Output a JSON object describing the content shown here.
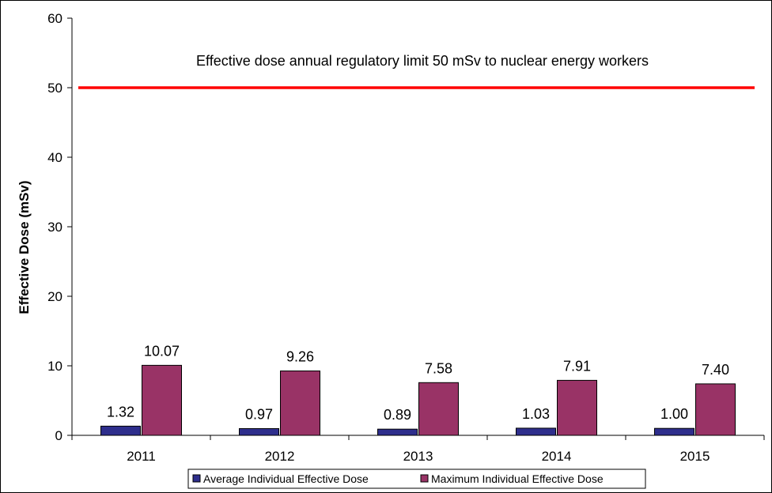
{
  "chart_data": {
    "type": "bar",
    "title": "",
    "xlabel": "",
    "ylabel": "Effective Dose (mSv)",
    "ylim": [
      0,
      60
    ],
    "yticks": [
      0,
      10,
      20,
      30,
      40,
      50,
      60
    ],
    "categories": [
      "2011",
      "2012",
      "2013",
      "2014",
      "2015"
    ],
    "series": [
      {
        "name": "Average Individual Effective Dose",
        "color": "#2e2e8c",
        "values": [
          1.32,
          0.97,
          0.89,
          1.03,
          1.0
        ],
        "labels": [
          "1.32",
          "0.97",
          "0.89",
          "1.03",
          "1.00"
        ]
      },
      {
        "name": "Maximum Individual Effective Dose",
        "color": "#993366",
        "values": [
          10.07,
          9.26,
          7.58,
          7.91,
          7.4
        ],
        "labels": [
          "10.07",
          "9.26",
          "7.58",
          "7.91",
          "7.40"
        ]
      }
    ],
    "reference_line": {
      "value": 50,
      "color": "#ff0000",
      "annotation": "Effective dose annual regulatory limit 50 mSv to nuclear energy workers"
    },
    "grid": false,
    "legend_position": "bottom"
  }
}
